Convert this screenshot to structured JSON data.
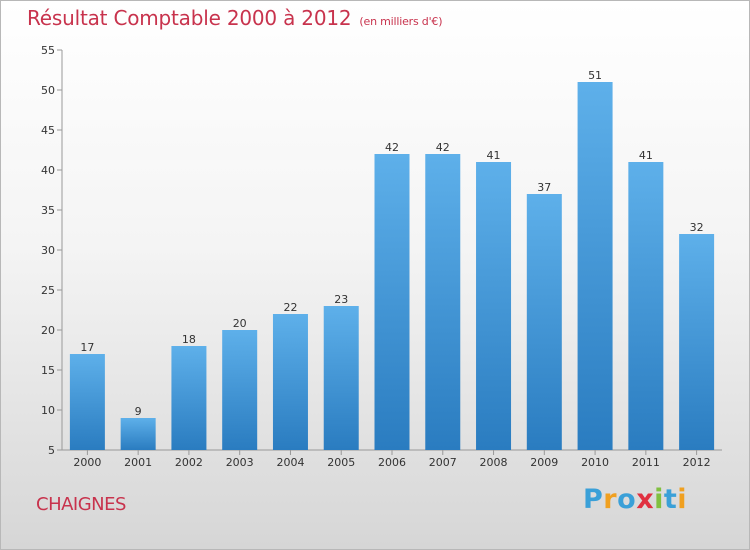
{
  "title": "Résultat Comptable 2000 à 2012",
  "subtitle": "(en milliers d'€)",
  "city": "CHAIGNES",
  "logo": "Proxiti",
  "colors": {
    "title": "#c8334d",
    "bar_top": "#5eb0ea",
    "bar_bottom": "#2a7cc0",
    "logo": [
      "#3aa0d8",
      "#f0a020",
      "#3aa0d8",
      "#e03040",
      "#80c040",
      "#3aa0d8",
      "#f0a020"
    ]
  },
  "chart_data": {
    "type": "bar",
    "title": "Résultat Comptable 2000 à 2012",
    "ylabel": "en milliers d'€",
    "categories": [
      "2000",
      "2001",
      "2002",
      "2003",
      "2004",
      "2005",
      "2006",
      "2007",
      "2008",
      "2009",
      "2010",
      "2011",
      "2012"
    ],
    "values": [
      17,
      9,
      18,
      20,
      22,
      23,
      42,
      42,
      41,
      37,
      51,
      41,
      32
    ],
    "ylim": [
      5,
      55
    ],
    "yticks": [
      5,
      10,
      15,
      20,
      25,
      30,
      35,
      40,
      45,
      50,
      55
    ],
    "grid": false
  }
}
